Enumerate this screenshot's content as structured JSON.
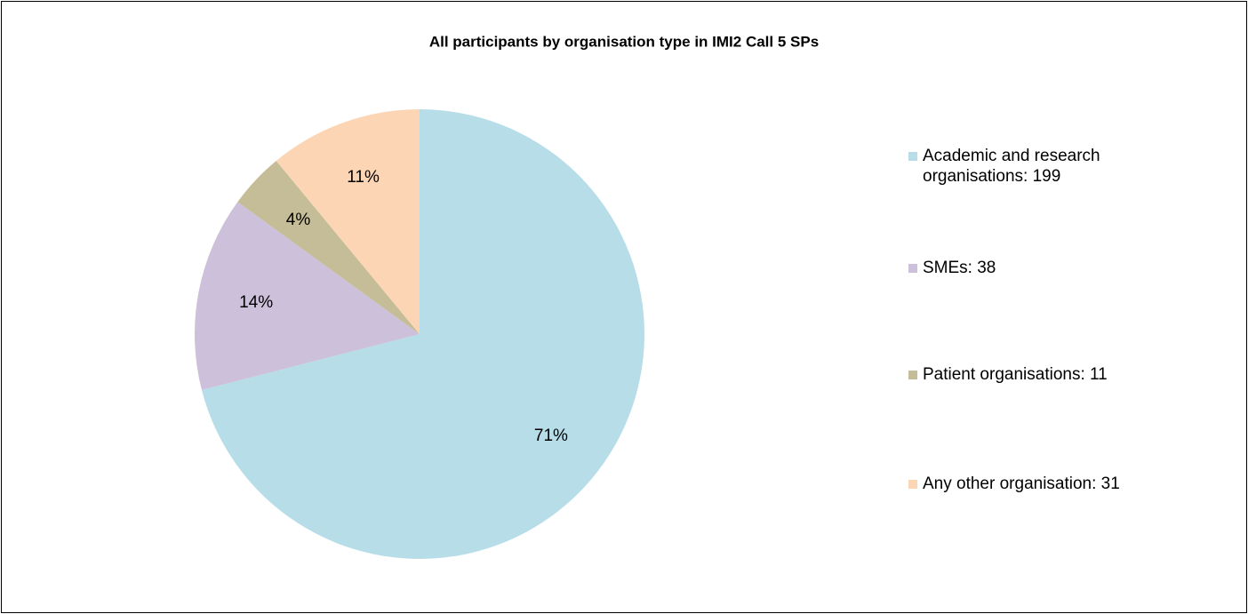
{
  "chart_data": {
    "type": "pie",
    "title": "All participants by organisation type in IMI2 Call 5 SPs",
    "categories": [
      "Academic and research organisations: 199",
      "SMEs: 38",
      "Patient organisations: 11",
      "Any other organisation: 31"
    ],
    "values": [
      71,
      14,
      4,
      11
    ],
    "value_labels": [
      "71%",
      "14%",
      "4%",
      "11%"
    ],
    "colors": [
      "#b7dde8",
      "#ccc0da",
      "#c4bd97",
      "#fcd5b5"
    ],
    "legend": "right"
  }
}
